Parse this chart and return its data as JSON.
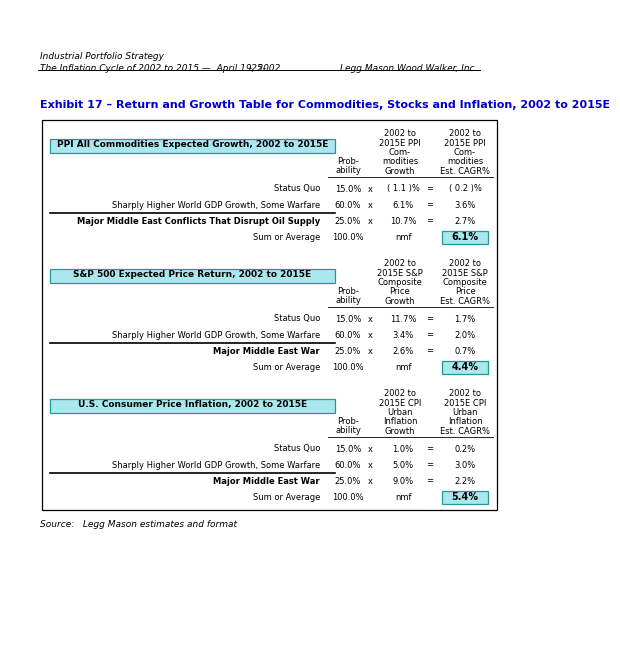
{
  "header_line1": "Industrial Portfolio Strategy",
  "header_line2": "The Inflation Cycle of 2002 to 2015 —  April 19, 2002",
  "header_center": "-25-",
  "header_right": "Legg Mason Wood Walker, Inc.",
  "exhibit_title": "Exhibit 17 – Return and Growth Table for Commodities, Stocks and Inflation, 2002 to 2015E",
  "source": "Source:   Legg Mason estimates and format",
  "sections": [
    {
      "title": "PPI All Commodities Expected Growth, 2002 to 2015E",
      "col1_header": [
        "2002 to",
        "2015E PPI",
        "Com-",
        "modities",
        "Growth"
      ],
      "col2_header": [
        "2002 to",
        "2015E PPI",
        "Com-",
        "modities",
        "Est. CAGR%"
      ],
      "rows": [
        {
          "label": "Status Quo",
          "prob": "15.0%",
          "growth": "( 1.1 )%",
          "cagr": "( 0.2 )%",
          "bold": false,
          "sum": false
        },
        {
          "label": "Sharply Higher World GDP Growth, Some Warfare",
          "prob": "60.0%",
          "growth": "6.1%",
          "cagr": "3.6%",
          "bold": false,
          "sum": false
        },
        {
          "label": "Major Middle East Conflicts That Disrupt Oil Supply",
          "prob": "25.0%",
          "growth": "10.7%",
          "cagr": "2.7%",
          "bold": true,
          "sum": false
        },
        {
          "label": "Sum or Average",
          "prob": "100.0%",
          "growth": "nmf",
          "cagr": "6.1%",
          "bold": false,
          "sum": true
        }
      ]
    },
    {
      "title": "S&P 500 Expected Price Return, 2002 to 2015E",
      "col1_header": [
        "2002 to",
        "2015E S&P",
        "Composite",
        "Price",
        "Growth"
      ],
      "col2_header": [
        "2002 to",
        "2015E S&P",
        "Composite",
        "Price",
        "Est. CAGR%"
      ],
      "rows": [
        {
          "label": "Status Quo",
          "prob": "15.0%",
          "growth": "11.7%",
          "cagr": "1.7%",
          "bold": false,
          "sum": false
        },
        {
          "label": "Sharply Higher World GDP Growth, Some Warfare",
          "prob": "60.0%",
          "growth": "3.4%",
          "cagr": "2.0%",
          "bold": false,
          "sum": false
        },
        {
          "label": "Major Middle East War",
          "prob": "25.0%",
          "growth": "2.6%",
          "cagr": "0.7%",
          "bold": true,
          "sum": false
        },
        {
          "label": "Sum or Average",
          "prob": "100.0%",
          "growth": "nmf",
          "cagr": "4.4%",
          "bold": false,
          "sum": true
        }
      ]
    },
    {
      "title": "U.S. Consumer Price Inflation, 2002 to 2015E",
      "col1_header": [
        "2002 to",
        "2015E CPI",
        "Urban",
        "Inflation",
        "Growth"
      ],
      "col2_header": [
        "2002 to",
        "2015E CPI",
        "Urban",
        "Inflation",
        "Est. CAGR%"
      ],
      "rows": [
        {
          "label": "Status Quo",
          "prob": "15.0%",
          "growth": "1.0%",
          "cagr": "0.2%",
          "bold": false,
          "sum": false
        },
        {
          "label": "Sharply Higher World GDP Growth, Some Warfare",
          "prob": "60.0%",
          "growth": "5.0%",
          "cagr": "3.0%",
          "bold": false,
          "sum": false
        },
        {
          "label": "Major Middle East War",
          "prob": "25.0%",
          "growth": "9.0%",
          "cagr": "2.2%",
          "bold": true,
          "sum": false
        },
        {
          "label": "Sum or Average",
          "prob": "100.0%",
          "growth": "nmf",
          "cagr": "5.4%",
          "bold": false,
          "sum": true
        }
      ]
    }
  ],
  "title_bg_color": "#aae8ee",
  "title_border_color": "#229999",
  "cagr_box_color": "#aae8ee",
  "cagr_box_border": "#229999",
  "exhibit_title_color": "#0000cc",
  "bg_color": "#ffffff"
}
